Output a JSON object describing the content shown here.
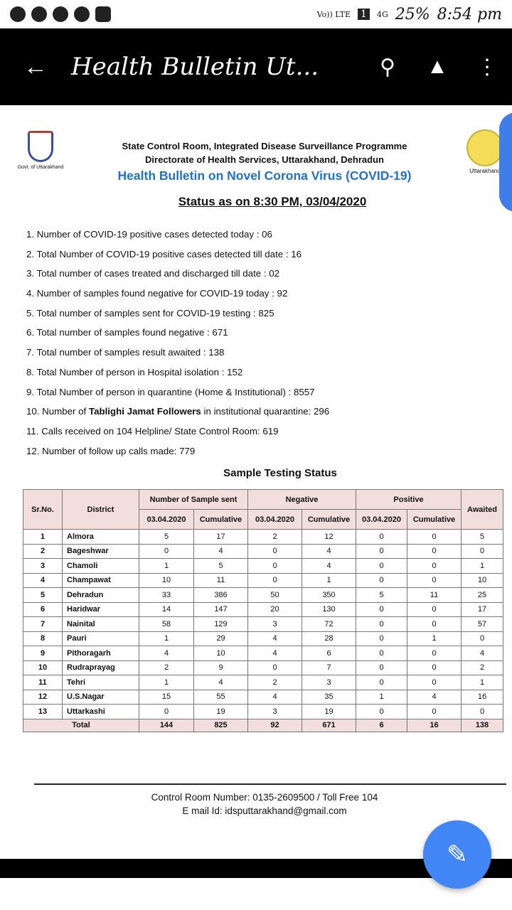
{
  "status_bar": {
    "network": "Vo)) LTE",
    "sim": "1",
    "signal": "4G",
    "battery": "25%",
    "time": "8:54 pm"
  },
  "app_bar": {
    "title": "Health Bulletin Ut...",
    "back_icon": "arrow-left-icon",
    "search_icon": "search-icon",
    "drive_icon": "drive-add-icon",
    "menu_icon": "more-vert-icon"
  },
  "doc": {
    "logo_left_caption": "Govt. of Uttarakhand",
    "logo_right_caption": "Uttarakhand",
    "header_line1": "State Control Room, Integrated Disease Surveillance Programme",
    "header_line2": "Directorate of Health Services, Uttarakhand, Dehradun",
    "header_title": "Health Bulletin on Novel Corona Virus (COVID-19)",
    "status_line": "Status as on 8:30 PM, 03/04/2020",
    "points": [
      "1.  Number of COVID-19 positive cases detected today : 06",
      "2.  Total Number of COVID-19 positive cases detected till date : 16",
      "3.  Total number of cases treated and discharged till date : 02",
      "4.  Number of samples found negative for COVID-19 today : 92",
      "5.  Total number of samples sent for COVID-19 testing : 825",
      "6.  Total number of samples found negative : 671",
      "7.  Total number of samples result awaited : 138",
      "8.  Total Number of person in Hospital isolation : 152",
      "9.  Total Number of person in quarantine (Home & Institutional) : 8557"
    ],
    "point10": {
      "pre": "10. Number of ",
      "bold": "Tablighi Jamat Followers",
      "post": " in institutional quarantine: 296"
    },
    "point11": "11. Calls received on 104 Helpline/ State Control Room: 619",
    "point12": "12. Number of follow up calls made: 779",
    "table_title": "Sample Testing Status",
    "table": {
      "h_sr": "Sr.No.",
      "h_district": "District",
      "h_sent": "Number of Sample sent",
      "h_neg": "Negative",
      "h_pos": "Positive",
      "h_awaited": "Awaited",
      "sub": [
        "03.04.2020",
        "Cumulative",
        "03.04.2020",
        "Cumulative",
        "03.04.2020",
        "Cumulative"
      ],
      "rows": [
        [
          "1",
          "Almora",
          "5",
          "17",
          "2",
          "12",
          "0",
          "0",
          "5"
        ],
        [
          "2",
          "Bageshwar",
          "0",
          "4",
          "0",
          "4",
          "0",
          "0",
          "0"
        ],
        [
          "3",
          "Chamoli",
          "1",
          "5",
          "0",
          "4",
          "0",
          "0",
          "1"
        ],
        [
          "4",
          "Champawat",
          "10",
          "11",
          "0",
          "1",
          "0",
          "0",
          "10"
        ],
        [
          "5",
          "Dehradun",
          "33",
          "386",
          "50",
          "350",
          "5",
          "11",
          "25"
        ],
        [
          "6",
          "Haridwar",
          "14",
          "147",
          "20",
          "130",
          "0",
          "0",
          "17"
        ],
        [
          "7",
          "Nainital",
          "58",
          "129",
          "3",
          "72",
          "0",
          "0",
          "57"
        ],
        [
          "8",
          "Pauri",
          "1",
          "29",
          "4",
          "28",
          "0",
          "1",
          "0"
        ],
        [
          "9",
          "Pithoragarh",
          "4",
          "10",
          "4",
          "6",
          "0",
          "0",
          "4"
        ],
        [
          "10",
          "Rudraprayag",
          "2",
          "9",
          "0",
          "7",
          "0",
          "0",
          "2"
        ],
        [
          "11",
          "Tehri",
          "1",
          "4",
          "2",
          "3",
          "0",
          "0",
          "1"
        ],
        [
          "12",
          "U.S.Nagar",
          "15",
          "55",
          "4",
          "35",
          "1",
          "4",
          "16"
        ],
        [
          "13",
          "Uttarkashi",
          "0",
          "19",
          "3",
          "19",
          "0",
          "0",
          "0"
        ]
      ],
      "total": [
        "Total",
        "144",
        "825",
        "92",
        "671",
        "6",
        "16",
        "138"
      ]
    },
    "footer_line1": "Control Room Number: 0135-2609500 / Toll Free 104",
    "footer_line2": "E mail Id: idsputtarakhand@gmail.com"
  },
  "fab": {
    "icon": "edit-pencil-icon",
    "color": "#4285f4"
  }
}
